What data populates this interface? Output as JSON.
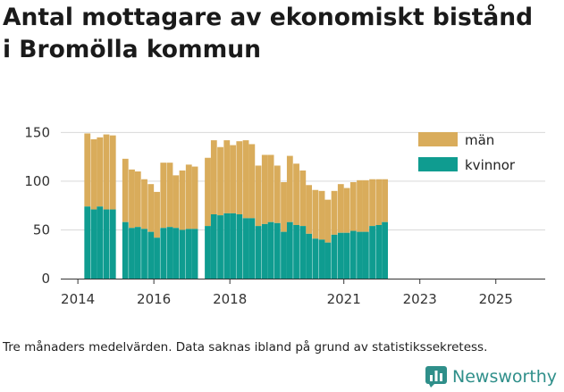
{
  "title_line1": "Antal mottagare av ekonomiskt bistånd",
  "title_line2": "i Bromölla kommun",
  "footnote": "Tre månaders medelvärden. Data saknas ibland på grund av statistikssekretess.",
  "brand": {
    "name": "Newsworthy",
    "icon": "bar-chart-logo-icon",
    "color": "#2f8f8a"
  },
  "colors": {
    "man": "#d9ac5b",
    "kvinnor": "#0f9c90",
    "grid": "#d9d9d9"
  },
  "chart_data": {
    "type": "bar",
    "stacked": true,
    "title": "Antal mottagare av ekonomiskt bistånd i Bromölla kommun",
    "xlabel": "",
    "ylabel": "",
    "ylim": [
      0,
      165
    ],
    "yticks": [
      0,
      50,
      100,
      150
    ],
    "xlim": [
      2013.55,
      2026.3
    ],
    "xticks": [
      2014,
      2016,
      2018,
      2021,
      2023,
      2025
    ],
    "bar_width_years": 0.16,
    "legend_position": "top-right",
    "series": [
      {
        "name": "män",
        "segments": [
          [
            2014.25,
            74,
            149
          ],
          [
            2014.42,
            71,
            143
          ],
          [
            2014.58,
            74,
            145
          ],
          [
            2014.75,
            71,
            148
          ],
          [
            2014.92,
            71,
            147
          ],
          [
            2015.25,
            58,
            123
          ],
          [
            2015.42,
            52,
            112
          ],
          [
            2015.58,
            53,
            110
          ],
          [
            2015.75,
            51,
            102
          ],
          [
            2015.92,
            48,
            97
          ],
          [
            2016.08,
            42,
            89
          ],
          [
            2016.25,
            52,
            119
          ],
          [
            2016.42,
            53,
            119
          ],
          [
            2016.58,
            52,
            106
          ],
          [
            2016.75,
            50,
            111
          ],
          [
            2016.92,
            51,
            117
          ],
          [
            2017.08,
            51,
            115
          ],
          [
            2017.42,
            54,
            124
          ],
          [
            2017.58,
            66,
            142
          ],
          [
            2017.75,
            65,
            135
          ],
          [
            2017.92,
            67,
            142
          ],
          [
            2018.08,
            67,
            137
          ],
          [
            2018.25,
            66,
            141
          ],
          [
            2018.42,
            62,
            142
          ],
          [
            2018.58,
            62,
            138
          ],
          [
            2018.75,
            54,
            116
          ],
          [
            2018.92,
            56,
            127
          ],
          [
            2019.08,
            58,
            127
          ],
          [
            2019.25,
            57,
            116
          ],
          [
            2019.42,
            48,
            99
          ],
          [
            2019.58,
            58,
            126
          ],
          [
            2019.75,
            55,
            118
          ],
          [
            2019.92,
            54,
            111
          ],
          [
            2020.08,
            46,
            96
          ],
          [
            2020.25,
            41,
            91
          ],
          [
            2020.42,
            40,
            90
          ],
          [
            2020.58,
            37,
            81
          ],
          [
            2020.75,
            45,
            90
          ],
          [
            2020.92,
            47,
            97
          ],
          [
            2021.08,
            47,
            93
          ],
          [
            2021.25,
            49,
            99
          ],
          [
            2021.42,
            48,
            101
          ],
          [
            2021.58,
            48,
            101
          ],
          [
            2021.75,
            54,
            102
          ],
          [
            2021.92,
            55,
            102
          ],
          [
            2022.08,
            58,
            102
          ]
        ]
      },
      {
        "name": "kvinnor",
        "segments": [
          [
            2014.25,
            0,
            74
          ],
          [
            2014.42,
            0,
            71
          ],
          [
            2014.58,
            0,
            74
          ],
          [
            2014.75,
            0,
            71
          ],
          [
            2014.92,
            0,
            71
          ],
          [
            2015.25,
            0,
            58
          ],
          [
            2015.42,
            0,
            52
          ],
          [
            2015.58,
            0,
            53
          ],
          [
            2015.75,
            0,
            51
          ],
          [
            2015.92,
            0,
            48
          ],
          [
            2016.08,
            0,
            42
          ],
          [
            2016.25,
            0,
            52
          ],
          [
            2016.42,
            0,
            53
          ],
          [
            2016.58,
            0,
            52
          ],
          [
            2016.75,
            0,
            50
          ],
          [
            2016.92,
            0,
            51
          ],
          [
            2017.08,
            0,
            51
          ],
          [
            2017.42,
            0,
            54
          ],
          [
            2017.58,
            0,
            66
          ],
          [
            2017.75,
            0,
            65
          ],
          [
            2017.92,
            0,
            67
          ],
          [
            2018.08,
            0,
            67
          ],
          [
            2018.25,
            0,
            66
          ],
          [
            2018.42,
            0,
            62
          ],
          [
            2018.58,
            0,
            62
          ],
          [
            2018.75,
            0,
            54
          ],
          [
            2018.92,
            0,
            56
          ],
          [
            2019.08,
            0,
            58
          ],
          [
            2019.25,
            0,
            57
          ],
          [
            2019.42,
            0,
            48
          ],
          [
            2019.58,
            0,
            58
          ],
          [
            2019.75,
            0,
            55
          ],
          [
            2019.92,
            0,
            54
          ],
          [
            2020.08,
            0,
            46
          ],
          [
            2020.25,
            0,
            41
          ],
          [
            2020.42,
            0,
            40
          ],
          [
            2020.58,
            0,
            37
          ],
          [
            2020.75,
            0,
            45
          ],
          [
            2020.92,
            0,
            47
          ],
          [
            2021.08,
            0,
            47
          ],
          [
            2021.25,
            0,
            49
          ],
          [
            2021.42,
            0,
            48
          ],
          [
            2021.58,
            0,
            48
          ],
          [
            2021.75,
            0,
            54
          ],
          [
            2021.92,
            0,
            55
          ],
          [
            2022.08,
            0,
            58
          ]
        ]
      }
    ]
  }
}
